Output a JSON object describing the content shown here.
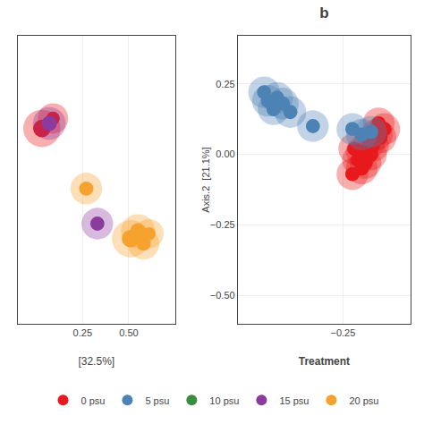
{
  "chart_data": [
    {
      "type": "scatter",
      "xlabel": "[32.5%]",
      "xlim": [
        -0.1,
        0.75
      ],
      "ylim": [
        -0.6,
        0.55
      ],
      "xticks": [
        0.25,
        {
          "value": 0.5,
          "label": "0.50"
        }
      ],
      "yticks": [],
      "tick_labels": "x",
      "grid": true,
      "legend": "bottom",
      "series": [
        {
          "name": "0 psu",
          "color": "#e8191c",
          "x": [
            0.03,
            0.09
          ],
          "y": [
            0.18,
            0.22
          ],
          "sizes": [
            900,
            600
          ],
          "inner_sizes": [
            200,
            120
          ]
        },
        {
          "name": "5 psu",
          "color": "#4c82b4",
          "x": [],
          "y": [],
          "sizes": [],
          "inner_sizes": []
        },
        {
          "name": "10 psu",
          "color": "#3a8c3f",
          "x": [],
          "y": [],
          "sizes": [],
          "inner_sizes": []
        },
        {
          "name": "15 psu",
          "color": "#8b3a9e",
          "x": [
            0.07,
            0.33
          ],
          "y": [
            0.2,
            -0.2
          ],
          "sizes": [
            700,
            650
          ],
          "inner_sizes": [
            150,
            130
          ]
        },
        {
          "name": "20 psu",
          "color": "#f5a22e",
          "x": [
            0.27,
            0.51,
            0.55,
            0.58,
            0.61
          ],
          "y": [
            -0.06,
            -0.26,
            -0.23,
            -0.28,
            -0.24
          ],
          "sizes": [
            650,
            900,
            750,
            650,
            550
          ],
          "inner_sizes": [
            130,
            200,
            160,
            130,
            110
          ]
        }
      ]
    },
    {
      "type": "scatter",
      "title": "b",
      "xlabel": "Treatment",
      "ylabel": "Axis.2  [21.1%]",
      "xlim": [
        -0.53,
        -0.07
      ],
      "ylim": [
        -0.6,
        0.42
      ],
      "xticks": [
        {
          "value": -0.25,
          "label": "−0.25"
        }
      ],
      "yticks": [
        0.25,
        {
          "value": 0.0,
          "label": "0.00"
        },
        {
          "value": -0.25,
          "label": "−0.25"
        },
        {
          "value": -0.5,
          "label": "−0.50"
        }
      ],
      "grid": true,
      "series": [
        {
          "name": "0 psu",
          "color": "#e8191c",
          "x": [
            -0.14,
            -0.15,
            -0.155,
            -0.16,
            -0.17,
            -0.175,
            -0.18,
            -0.19,
            -0.2,
            -0.2,
            -0.21,
            -0.22,
            -0.225
          ],
          "y": [
            0.09,
            0.06,
            0.11,
            0.07,
            0.03,
            0.0,
            0.04,
            -0.03,
            -0.05,
            0.01,
            -0.02,
            0.02,
            -0.07
          ]
        },
        {
          "name": "5 psu",
          "color": "#4c82b4",
          "x": [
            -0.175,
            -0.2,
            -0.225,
            -0.33,
            -0.39,
            -0.41,
            -0.425,
            -0.435,
            -0.45,
            -0.46
          ],
          "y": [
            0.08,
            0.07,
            0.09,
            0.1,
            0.15,
            0.18,
            0.2,
            0.16,
            0.19,
            0.22
          ]
        }
      ]
    }
  ]
}
